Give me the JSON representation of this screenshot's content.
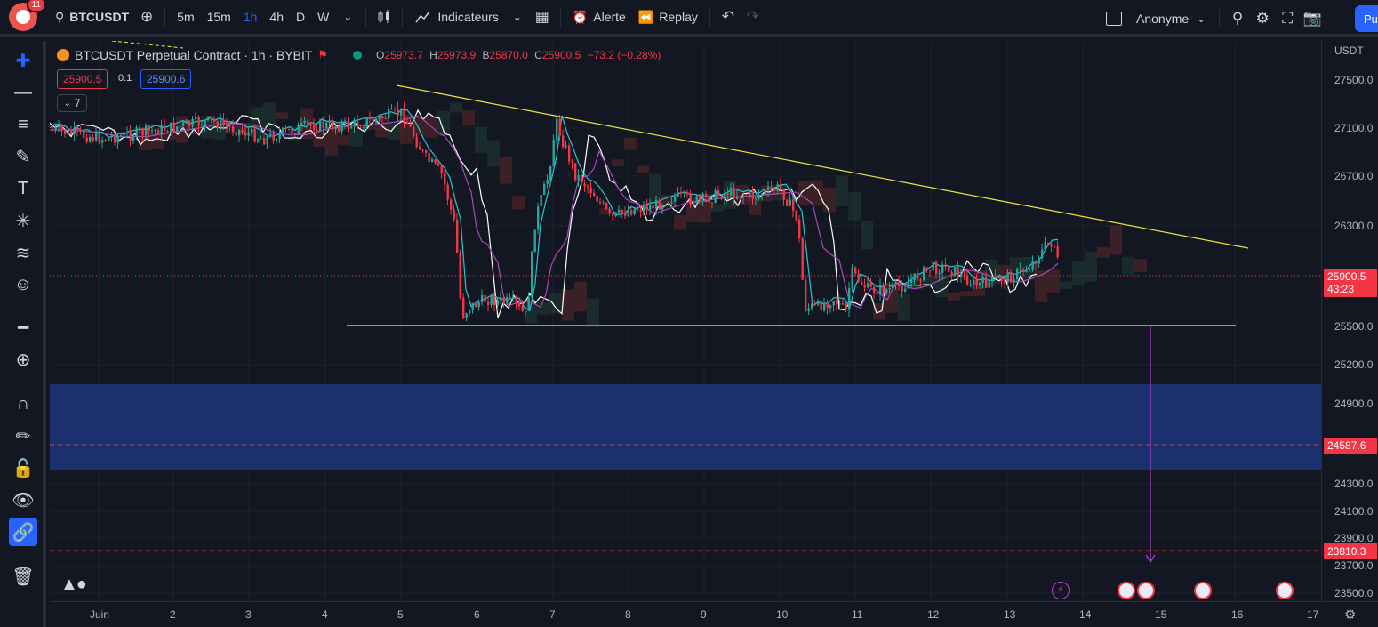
{
  "topbar": {
    "notifications": "11",
    "symbol": "BTCUSDT",
    "intervals": [
      "5m",
      "15m",
      "1h",
      "4h",
      "D",
      "W"
    ],
    "active_interval": "1h",
    "indicators_label": "Indicateurs",
    "alert_label": "Alerte",
    "replay_label": "Replay",
    "layout_name": "Anonyme",
    "publish_label": "Pu"
  },
  "legend": {
    "title": "BTCUSDT Perpetual Contract · 1h · BYBIT",
    "open_label": "O",
    "open": "25973.7",
    "high_label": "H",
    "high": "25973.9",
    "low_label": "B",
    "low": "25870.0",
    "close_label": "C",
    "close": "25900.5",
    "change": "−73.2 (−0.28%)",
    "sell_price": "25900.5",
    "spread": "0.1",
    "buy_price": "25900.6",
    "indicators_count": "7"
  },
  "price_axis": {
    "currency": "USDT",
    "ticks": [
      "27500.0",
      "27100.0",
      "26700.0",
      "26300.0",
      "25500.0",
      "25200.0",
      "24900.0",
      "24300.0",
      "24100.0",
      "23900.0",
      "23700.0",
      "23500.0"
    ],
    "current_price": "25900.5",
    "countdown": "43:23",
    "level_1": "24587.6",
    "level_2": "23810.3"
  },
  "time_axis": {
    "ticks": [
      "Juin",
      "2",
      "3",
      "4",
      "5",
      "6",
      "7",
      "8",
      "9",
      "10",
      "11",
      "12",
      "13",
      "14",
      "15",
      "16",
      "17"
    ]
  },
  "colors": {
    "up": "#26a69a",
    "down": "#f23645",
    "trendline": "#f0e442",
    "zone": "#1e3a8a",
    "arrow": "#b040d0",
    "accent": "#2962ff"
  }
}
